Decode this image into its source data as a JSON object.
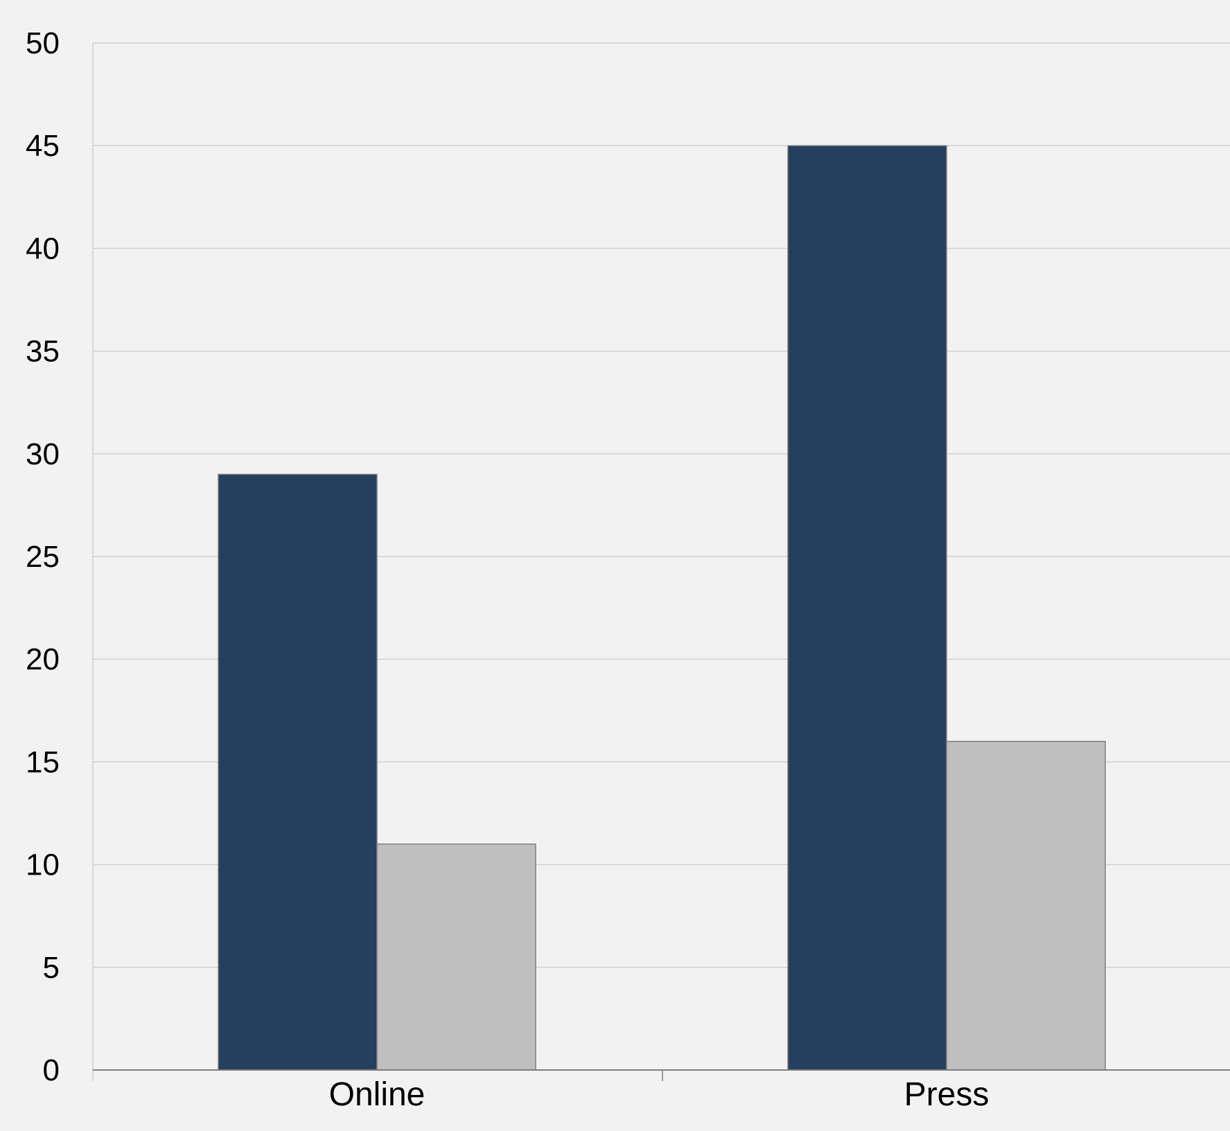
{
  "chart_data": {
    "type": "bar",
    "title": "",
    "xlabel": "",
    "ylabel": "",
    "categories": [
      "Online",
      "Press"
    ],
    "series": [
      {
        "values": [
          29,
          45
        ],
        "color": "#253f5e"
      },
      {
        "values": [
          11,
          16
        ],
        "color": "#bfbfbf"
      }
    ],
    "ylim": [
      0,
      50
    ],
    "y_ticks": [
      "0",
      "5",
      "10",
      "15",
      "20",
      "25",
      "30",
      "35",
      "40",
      "45",
      "50"
    ],
    "grid": true,
    "legend": "none",
    "colors": {
      "background": "#f2f2f2",
      "gridline": "#d0d0d0",
      "axis": "#7f7f7f",
      "bar_outline": "#7f7f7f"
    }
  }
}
